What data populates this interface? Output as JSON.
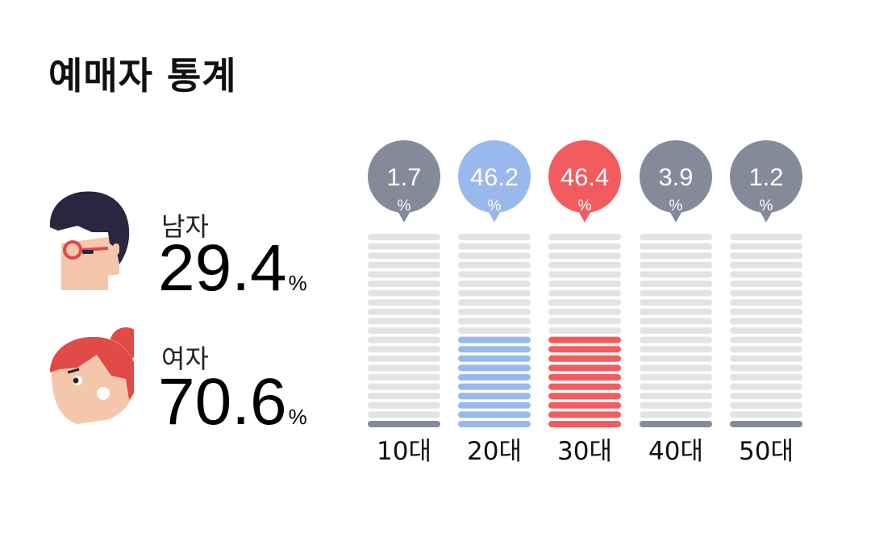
{
  "title": "예매자 통계",
  "gender": {
    "male": {
      "label": "남자",
      "value": "29.4",
      "unit": "%"
    },
    "female": {
      "label": "여자",
      "value": "70.6",
      "unit": "%"
    }
  },
  "chart_data": {
    "type": "bar",
    "categories": [
      "10대",
      "20대",
      "30대",
      "40대",
      "50대"
    ],
    "values": [
      1.7,
      46.2,
      46.4,
      3.9,
      1.2
    ],
    "value_labels": [
      "1.7",
      "46.2",
      "46.4",
      "3.9",
      "1.2"
    ],
    "unit": "%",
    "ylim": [
      0,
      100
    ],
    "colors": {
      "empty": "#e3e3e3",
      "bubble_default": "#858a9b",
      "bar_default": "#858a9b",
      "highlight_blue": "#99b8ee",
      "highlight_red": "#f25c5f"
    },
    "highlight": {
      "20대": "#99b8ee",
      "30대": "#f25c5f"
    }
  }
}
